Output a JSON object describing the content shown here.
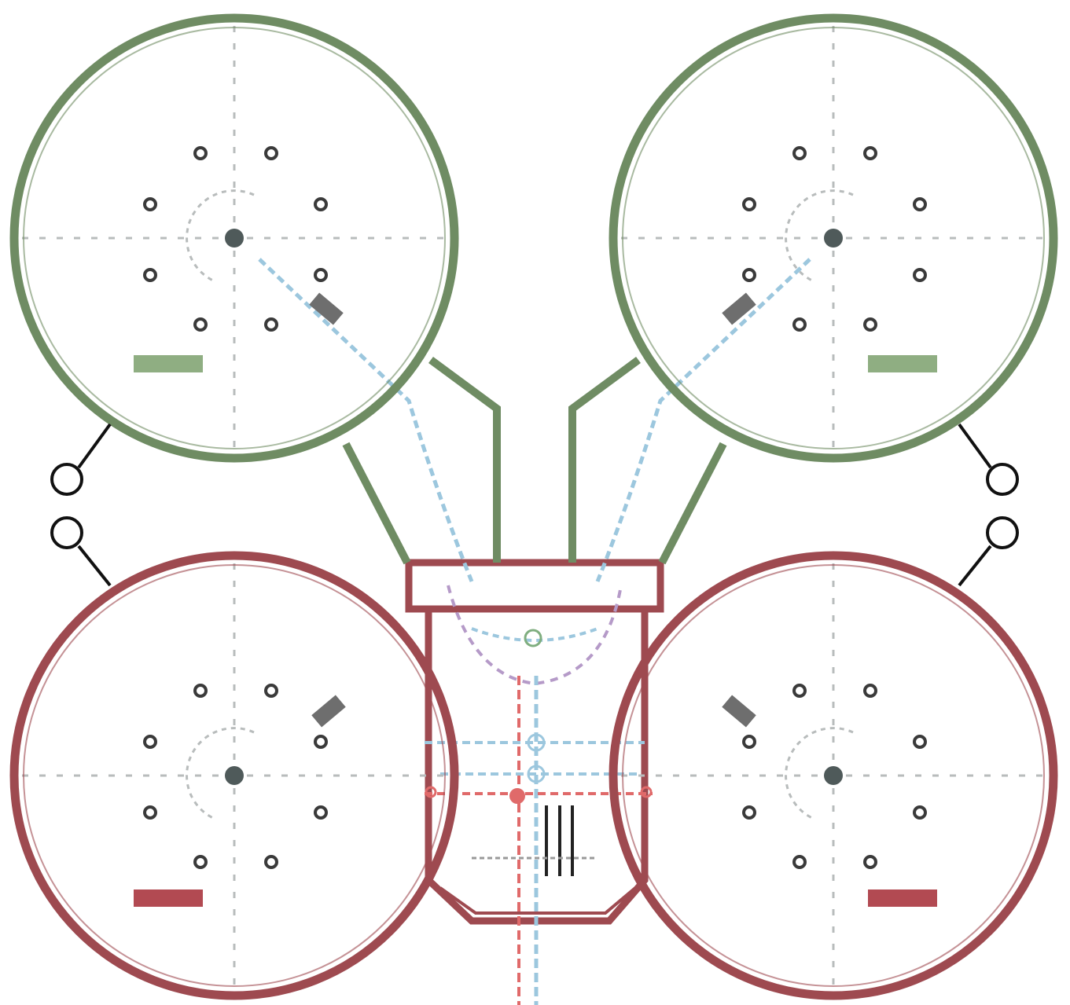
{
  "diagram": {
    "colors": {
      "background": "#ffffff",
      "front_frame": "#6f8c63",
      "rear_frame": "#9e4a50",
      "hole": "#3a3a3a",
      "hub": "#4f5a5a",
      "guide": "#b8bcbc",
      "cable_blue": "#9cc7de",
      "cable_red": "#e06a6a",
      "connector": "#111111",
      "label_green": "#8fae82",
      "label_red": "#b24a52"
    },
    "rotors": [
      {
        "name": "front-left",
        "color": "front_frame",
        "label": ""
      },
      {
        "name": "front-right",
        "color": "front_frame",
        "label": ""
      },
      {
        "name": "rear-left",
        "color": "rear_frame",
        "label": ""
      },
      {
        "name": "rear-right",
        "color": "rear_frame",
        "label": ""
      }
    ]
  }
}
